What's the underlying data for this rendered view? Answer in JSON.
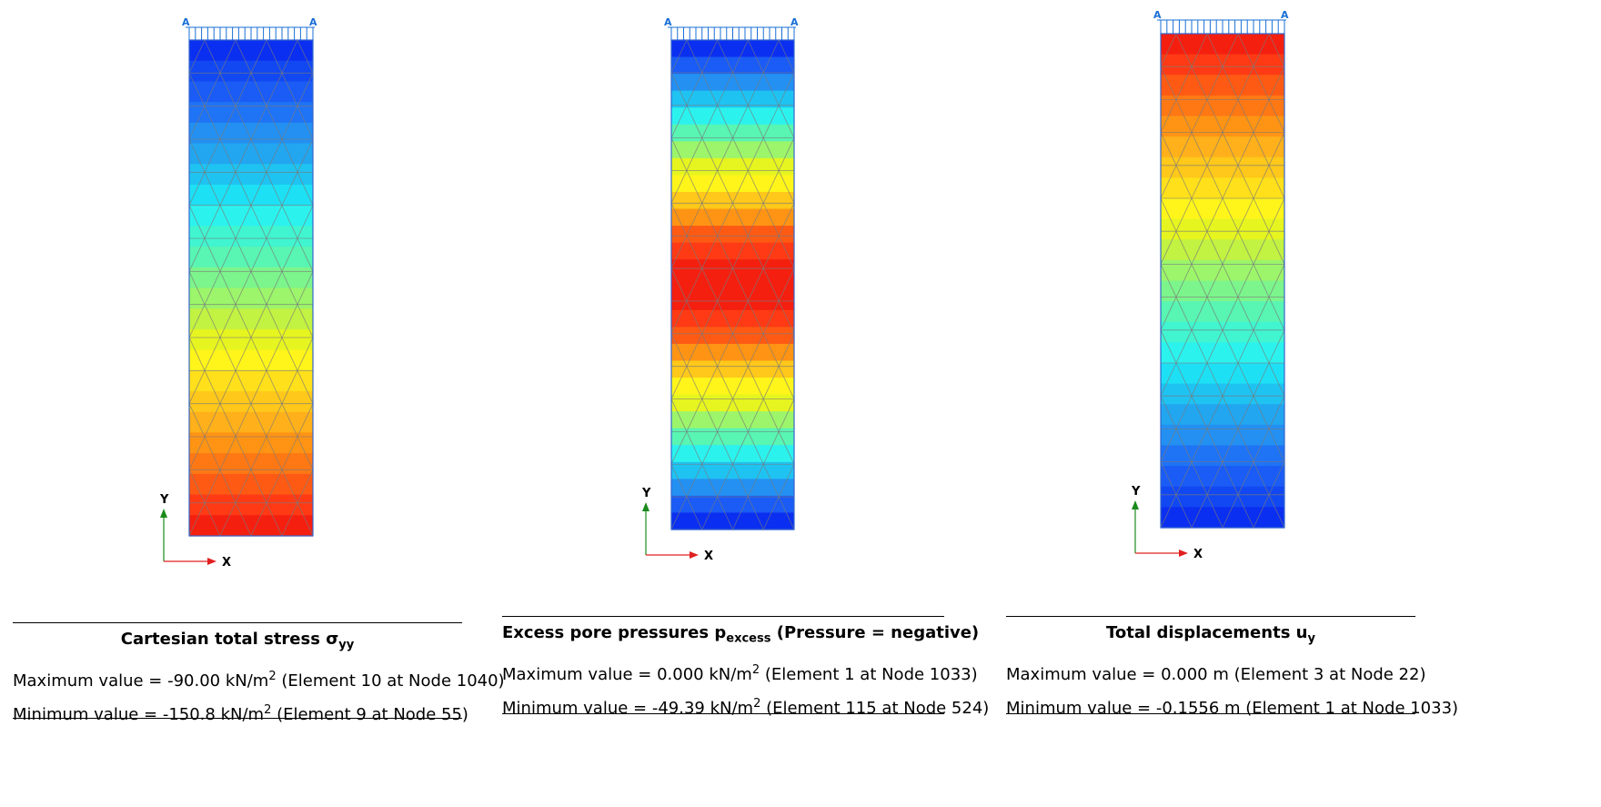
{
  "panels": [
    {
      "id": "stress",
      "title_main": "Cartesian total stress σ",
      "title_sub": "yy",
      "title_suffix": "",
      "max_prefix": "Maximum value = -90.00 kN/m",
      "max_sup": "2",
      "max_suffix": " (Element 10 at Node 1040)",
      "min_prefix": "Minimum value = -150.8 kN/m",
      "min_sup": "2",
      "min_suffix": " (Element 9 at Node 55)",
      "load_label_left": "A",
      "load_label_right": "A",
      "axis_y": "Y",
      "axis_x": "X",
      "bands_top_to_bottom": [
        "#0b2ff0",
        "#1148f2",
        "#1a5cf5",
        "#1f73f5",
        "#2390f2",
        "#22a6f0",
        "#1fc3f2",
        "#1ee0f5",
        "#2cf2ee",
        "#40f5d0",
        "#58f5b3",
        "#7cf58c",
        "#9cf56a",
        "#c2f242",
        "#e6f51f",
        "#fff51a",
        "#ffe01a",
        "#ffc81a",
        "#ffb01a",
        "#ff9414",
        "#ff7814",
        "#ff5a14",
        "#ff3a14",
        "#f51f10"
      ]
    },
    {
      "id": "pore",
      "title_main": "Excess pore pressures p",
      "title_sub": "excess",
      "title_suffix": "  (Pressure = negative)",
      "max_prefix": "Maximum value = 0.000 kN/m",
      "max_sup": "2",
      "max_suffix": " (Element 1 at Node 1033)",
      "min_prefix": "Minimum value = -49.39 kN/m",
      "min_sup": "2",
      "min_suffix": " (Element 115 at Node 524)",
      "load_label_left": "A",
      "load_label_right": "A",
      "axis_y": "Y",
      "axis_x": "X",
      "bands_top_to_bottom": [
        "#0b2ff0",
        "#1a5cf5",
        "#2390f2",
        "#1fc3f2",
        "#2cf2ee",
        "#58f5b3",
        "#9cf56a",
        "#e6f51f",
        "#fff51a",
        "#ffc81a",
        "#ff9414",
        "#ff5a14",
        "#ff3a14",
        "#f51f10",
        "#f51f10",
        "#f51f10",
        "#ff3a14",
        "#ff5a14",
        "#ff9414",
        "#ffc81a",
        "#fff51a",
        "#e6f51f",
        "#9cf56a",
        "#58f5b3",
        "#2cf2ee",
        "#1fc3f2",
        "#2390f2",
        "#1a5cf5",
        "#0b2ff0"
      ]
    },
    {
      "id": "disp",
      "title_main": "Total displacements u",
      "title_sub": "y",
      "title_suffix": "",
      "max_prefix": "Maximum value = 0.000 m (Element 3 at Node 22)",
      "max_sup": "",
      "max_suffix": "",
      "min_prefix": "Minimum value = -0.1556 m (Element 1 at Node 1033)",
      "min_sup": "",
      "min_suffix": "",
      "load_label_left": "A",
      "load_label_right": "A",
      "axis_y": "Y",
      "axis_x": "X",
      "bands_top_to_bottom": [
        "#f51f10",
        "#ff3a14",
        "#ff5a14",
        "#ff7814",
        "#ff9414",
        "#ffb01a",
        "#ffc81a",
        "#ffe01a",
        "#fff51a",
        "#e6f51f",
        "#c2f242",
        "#9cf56a",
        "#7cf58c",
        "#58f5b3",
        "#40f5d0",
        "#2cf2ee",
        "#1ee0f5",
        "#1fc3f2",
        "#22a6f0",
        "#2390f2",
        "#1f73f5",
        "#1a5cf5",
        "#1148f2",
        "#0b2ff0"
      ]
    }
  ]
}
